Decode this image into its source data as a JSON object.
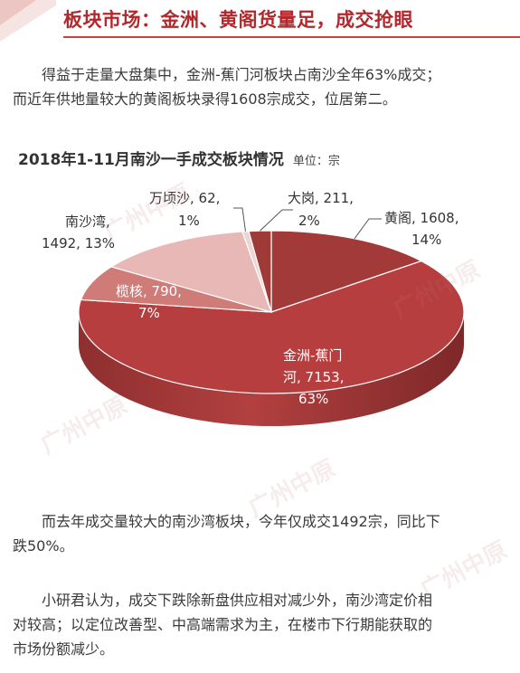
{
  "header": {
    "title": "板块市场：金洲、黄阁货量足，成交抢眼"
  },
  "intro": {
    "line1": "得益于走量大盘集中，金洲-蕉门河板块占南沙全年63%成交；",
    "line2": "而近年供地量较大的黄阁板块录得1608宗成交，位居第二。"
  },
  "chart_data": {
    "type": "pie",
    "title": "2018年1-11月南沙一手成交板块情况",
    "unit": "单位：宗",
    "slices": [
      {
        "label": "黄阁",
        "value": 1608,
        "percent": "14%",
        "color": "#a33a3a"
      },
      {
        "label": "金洲-蕉门河",
        "value": 7153,
        "percent": "63%",
        "color": "#b63e3f"
      },
      {
        "label": "榄核",
        "value": 790,
        "percent": "7%",
        "color": "#cf7b78"
      },
      {
        "label": "南沙湾",
        "value": 1492,
        "percent": "13%",
        "color": "#e8b8b6"
      },
      {
        "label": "万顷沙",
        "value": 62,
        "percent": "1%",
        "color": "#ecd6d4"
      },
      {
        "label": "大岗",
        "value": 211,
        "percent": "2%",
        "color": "#9e3a38"
      }
    ],
    "labels": {
      "huangge": [
        "黄阁, 1608,",
        "14%"
      ],
      "jinzhou": [
        "金洲-蕉门",
        "河, 7153,",
        "63%"
      ],
      "lanhe": [
        "榄核, 790,",
        "7%"
      ],
      "nanshawan": [
        "南沙湾,",
        "1492, 13%"
      ],
      "wanqingsha": [
        "万顷沙, 62,",
        "1%"
      ],
      "dagang": [
        "大岗, 211,",
        "2%"
      ]
    }
  },
  "para2": {
    "line1": "而去年成交量较大的南沙湾板块，今年仅成交1492宗，同比下",
    "line2": "跌50%。"
  },
  "para3": {
    "line1": "小研君认为，成交下跌除新盘供应相对减少外，南沙湾定价相",
    "line2": "对较高；以定位改善型、中高端需求为主，在楼市下行期能获取的",
    "line3": "市场份额减少。"
  }
}
